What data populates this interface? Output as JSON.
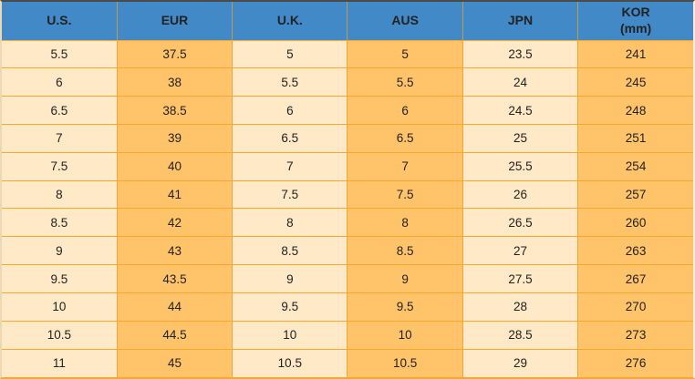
{
  "chart_data": {
    "type": "table",
    "columns": [
      {
        "label": "U.S.",
        "sublabel": ""
      },
      {
        "label": "EUR",
        "sublabel": ""
      },
      {
        "label": "U.K.",
        "sublabel": ""
      },
      {
        "label": "AUS",
        "sublabel": ""
      },
      {
        "label": "JPN",
        "sublabel": ""
      },
      {
        "label": "KOR",
        "sublabel": "(mm)"
      }
    ],
    "rows": [
      [
        "5.5",
        "37.5",
        "5",
        "5",
        "23.5",
        "241"
      ],
      [
        "6",
        "38",
        "5.5",
        "5.5",
        "24",
        "245"
      ],
      [
        "6.5",
        "38.5",
        "6",
        "6",
        "24.5",
        "248"
      ],
      [
        "7",
        "39",
        "6.5",
        "6.5",
        "25",
        "251"
      ],
      [
        "7.5",
        "40",
        "7",
        "7",
        "25.5",
        "254"
      ],
      [
        "8",
        "41",
        "7.5",
        "7.5",
        "26",
        "257"
      ],
      [
        "8.5",
        "42",
        "8",
        "8",
        "26.5",
        "260"
      ],
      [
        "9",
        "43",
        "8.5",
        "8.5",
        "27",
        "263"
      ],
      [
        "9.5",
        "43.5",
        "9",
        "9",
        "27.5",
        "267"
      ],
      [
        "10",
        "44",
        "9.5",
        "9.5",
        "28",
        "270"
      ],
      [
        "10.5",
        "44.5",
        "10",
        "10",
        "28.5",
        "273"
      ],
      [
        "11",
        "45",
        "10.5",
        "10.5",
        "29",
        "276"
      ]
    ]
  },
  "colors": {
    "header_bg": "#4189C7",
    "column_light": "#FFE9C7",
    "column_orange": "#FFC369",
    "grid_line": "#FBA72B",
    "header_divider": "#C2994E",
    "top_border": "#4B4B4B",
    "text": "#222222"
  }
}
